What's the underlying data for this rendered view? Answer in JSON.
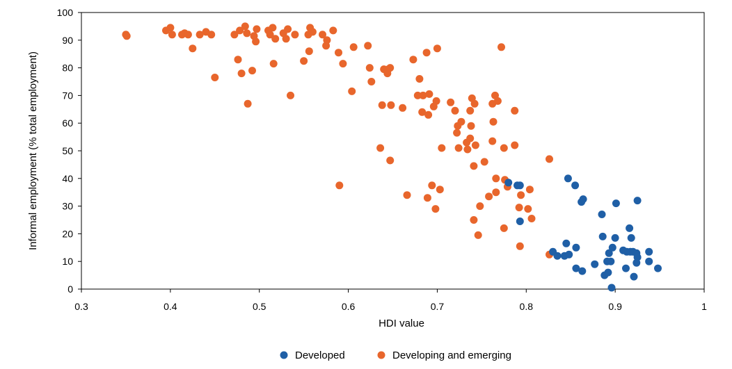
{
  "chart_data": {
    "type": "scatter",
    "title": "",
    "xlabel": "HDI value",
    "ylabel": "Informal employment (% total employment)",
    "xlim": [
      0.3,
      1.0
    ],
    "ylim": [
      0,
      100
    ],
    "xticks": [
      "0.3",
      "0.4",
      "0.5",
      "0.6",
      "0.7",
      "0.8",
      "0.9",
      "1"
    ],
    "xtick_values": [
      0.3,
      0.4,
      0.5,
      0.6,
      0.7,
      0.8,
      0.9,
      1.0
    ],
    "yticks": [
      "0",
      "10",
      "20",
      "30",
      "40",
      "50",
      "60",
      "70",
      "80",
      "90",
      "100"
    ],
    "ytick_values": [
      0,
      10,
      20,
      30,
      40,
      50,
      60,
      70,
      80,
      90,
      100
    ],
    "grid": false,
    "legend_position": "bottom-center",
    "colors": {
      "Developed": "#1f5fa6",
      "Developing and emerging": "#e8662c"
    },
    "series": [
      {
        "name": "Developed",
        "points": [
          [
            0.78,
            38.5
          ],
          [
            0.79,
            37.5
          ],
          [
            0.793,
            37.5
          ],
          [
            0.793,
            24.5
          ],
          [
            0.83,
            13.5
          ],
          [
            0.835,
            12
          ],
          [
            0.843,
            12
          ],
          [
            0.845,
            16.5
          ],
          [
            0.848,
            12.5
          ],
          [
            0.847,
            40
          ],
          [
            0.855,
            37.5
          ],
          [
            0.856,
            15
          ],
          [
            0.856,
            7.5
          ],
          [
            0.862,
            31.5
          ],
          [
            0.864,
            32.5
          ],
          [
            0.863,
            6.5
          ],
          [
            0.877,
            9
          ],
          [
            0.885,
            27
          ],
          [
            0.886,
            19
          ],
          [
            0.888,
            5
          ],
          [
            0.891,
            10
          ],
          [
            0.892,
            6
          ],
          [
            0.893,
            13
          ],
          [
            0.895,
            10
          ],
          [
            0.897,
            15
          ],
          [
            0.896,
            0.5
          ],
          [
            0.9,
            18.5
          ],
          [
            0.901,
            31
          ],
          [
            0.909,
            14
          ],
          [
            0.912,
            7.5
          ],
          [
            0.913,
            13.5
          ],
          [
            0.916,
            22
          ],
          [
            0.917,
            13.5
          ],
          [
            0.918,
            18.5
          ],
          [
            0.92,
            13.5
          ],
          [
            0.921,
            4.5
          ],
          [
            0.924,
            13
          ],
          [
            0.924,
            9.5
          ],
          [
            0.925,
            11.5
          ],
          [
            0.925,
            32
          ],
          [
            0.938,
            13.5
          ],
          [
            0.938,
            10
          ],
          [
            0.948,
            7.5
          ]
        ]
      },
      {
        "name": "Developing and emerging",
        "points": [
          [
            0.35,
            92
          ],
          [
            0.351,
            91.5
          ],
          [
            0.395,
            93.5
          ],
          [
            0.4,
            94.5
          ],
          [
            0.402,
            92
          ],
          [
            0.413,
            92
          ],
          [
            0.416,
            92.5
          ],
          [
            0.42,
            92
          ],
          [
            0.425,
            87
          ],
          [
            0.433,
            92
          ],
          [
            0.44,
            93
          ],
          [
            0.446,
            92
          ],
          [
            0.45,
            76.5
          ],
          [
            0.472,
            92
          ],
          [
            0.476,
            83
          ],
          [
            0.478,
            93.5
          ],
          [
            0.48,
            78
          ],
          [
            0.484,
            95
          ],
          [
            0.486,
            92.5
          ],
          [
            0.487,
            67
          ],
          [
            0.492,
            79
          ],
          [
            0.494,
            91.5
          ],
          [
            0.496,
            89.5
          ],
          [
            0.497,
            94
          ],
          [
            0.51,
            93.5
          ],
          [
            0.512,
            92
          ],
          [
            0.515,
            94.5
          ],
          [
            0.516,
            81.5
          ],
          [
            0.518,
            90.5
          ],
          [
            0.527,
            92.5
          ],
          [
            0.53,
            90.5
          ],
          [
            0.532,
            94
          ],
          [
            0.535,
            70
          ],
          [
            0.54,
            92
          ],
          [
            0.55,
            82.5
          ],
          [
            0.555,
            92
          ],
          [
            0.556,
            86
          ],
          [
            0.557,
            94.5
          ],
          [
            0.56,
            93
          ],
          [
            0.571,
            92
          ],
          [
            0.575,
            88
          ],
          [
            0.576,
            90
          ],
          [
            0.583,
            93.5
          ],
          [
            0.589,
            85.5
          ],
          [
            0.59,
            37.5
          ],
          [
            0.594,
            81.5
          ],
          [
            0.604,
            71.5
          ],
          [
            0.606,
            87.5
          ],
          [
            0.622,
            88
          ],
          [
            0.624,
            80
          ],
          [
            0.626,
            75
          ],
          [
            0.636,
            51
          ],
          [
            0.638,
            66.5
          ],
          [
            0.64,
            79.5
          ],
          [
            0.644,
            78
          ],
          [
            0.645,
            79.5
          ],
          [
            0.647,
            80
          ],
          [
            0.647,
            46.5
          ],
          [
            0.648,
            66.5
          ],
          [
            0.661,
            65.5
          ],
          [
            0.666,
            34
          ],
          [
            0.673,
            83
          ],
          [
            0.678,
            70
          ],
          [
            0.68,
            76
          ],
          [
            0.683,
            64
          ],
          [
            0.684,
            70
          ],
          [
            0.688,
            85.5
          ],
          [
            0.689,
            33
          ],
          [
            0.69,
            63
          ],
          [
            0.691,
            70.5
          ],
          [
            0.694,
            37.5
          ],
          [
            0.696,
            66
          ],
          [
            0.698,
            29
          ],
          [
            0.699,
            68
          ],
          [
            0.7,
            87
          ],
          [
            0.703,
            36
          ],
          [
            0.705,
            51
          ],
          [
            0.715,
            67.5
          ],
          [
            0.72,
            64.5
          ],
          [
            0.722,
            56.5
          ],
          [
            0.723,
            59
          ],
          [
            0.724,
            51
          ],
          [
            0.727,
            60.5
          ],
          [
            0.733,
            53
          ],
          [
            0.734,
            50.5
          ],
          [
            0.737,
            64.5
          ],
          [
            0.737,
            54.5
          ],
          [
            0.738,
            59
          ],
          [
            0.739,
            69
          ],
          [
            0.741,
            25
          ],
          [
            0.741,
            44.5
          ],
          [
            0.742,
            67
          ],
          [
            0.743,
            52
          ],
          [
            0.746,
            19.5
          ],
          [
            0.748,
            30
          ],
          [
            0.753,
            46
          ],
          [
            0.758,
            33.5
          ],
          [
            0.762,
            53.5
          ],
          [
            0.762,
            67
          ],
          [
            0.763,
            60.5
          ],
          [
            0.765,
            70
          ],
          [
            0.766,
            35
          ],
          [
            0.766,
            40
          ],
          [
            0.768,
            68
          ],
          [
            0.772,
            87.5
          ],
          [
            0.775,
            22
          ],
          [
            0.775,
            51
          ],
          [
            0.776,
            39.5
          ],
          [
            0.779,
            37
          ],
          [
            0.787,
            52
          ],
          [
            0.787,
            64.5
          ],
          [
            0.792,
            29.5
          ],
          [
            0.793,
            15.5
          ],
          [
            0.794,
            34
          ],
          [
            0.802,
            29
          ],
          [
            0.804,
            36
          ],
          [
            0.806,
            25.5
          ],
          [
            0.826,
            47
          ],
          [
            0.826,
            12.5
          ]
        ]
      }
    ]
  }
}
